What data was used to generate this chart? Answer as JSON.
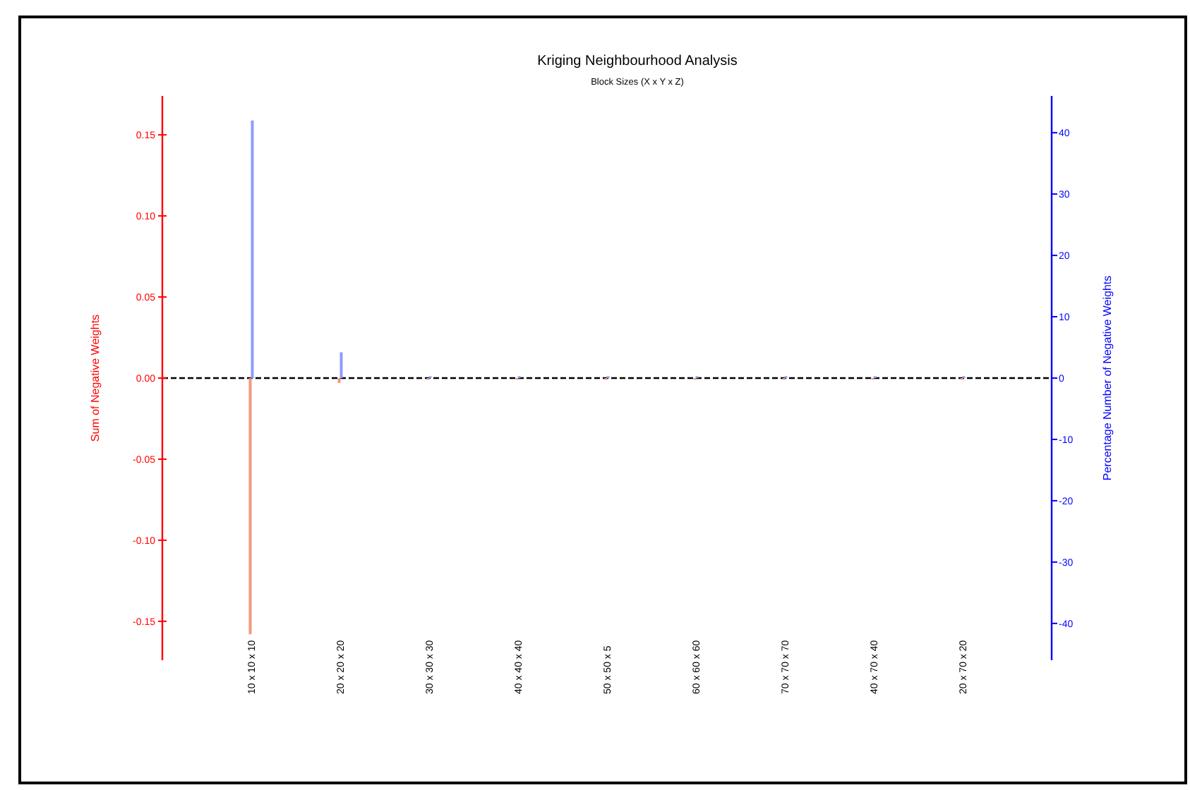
{
  "chart_data": {
    "type": "bar",
    "title": "Kriging Neighbourhood Analysis",
    "subtitle": "Block Sizes (X x Y x Z)",
    "ylabel": "Sum of Negative Weights",
    "y2label": "Percentage Number of Negative Weights",
    "categories": [
      "10 x 10 x 10",
      "20 x 20 x 20",
      "30 x 30 x 30",
      "40 x 40 x 40",
      "50 x 50 x 5",
      "60 x 60 x 60",
      "70 x 70 x 70",
      "40 x 70 x 40",
      "20 x 70 x 20"
    ],
    "series": [
      {
        "color": "#f4977f",
        "values": [
          -0.158,
          -0.003,
          -0.001,
          -0.001,
          -0.001,
          -0.001,
          -0.001,
          -0.001,
          -0.001
        ]
      },
      {
        "color": "#8c9cff",
        "axis": "y2",
        "values": [
          42,
          4.2,
          0.3,
          0.3,
          0.3,
          0.3,
          0.3,
          0.3,
          0.3
        ]
      }
    ],
    "ylim": [
      -0.174,
      0.174
    ],
    "yticks": [
      {
        "value": -0.15,
        "label": "-0.15"
      },
      {
        "value": -0.1,
        "label": "-0.10"
      },
      {
        "value": -0.05,
        "label": "-0.05"
      },
      {
        "value": 0,
        "label": "0.00"
      },
      {
        "value": 0.05,
        "label": "0.05"
      },
      {
        "value": 0.1,
        "label": "0.10"
      },
      {
        "value": 0.15,
        "label": "0.15"
      }
    ],
    "y2lim": [
      -46,
      46
    ],
    "y2ticks": [
      -40,
      -30,
      -20,
      -10,
      0,
      10,
      20,
      30,
      40
    ],
    "ref_lines": [
      {
        "axis": "y",
        "value": 0,
        "color": "#000000",
        "line_style": "dashed"
      }
    ],
    "grid": false
  }
}
